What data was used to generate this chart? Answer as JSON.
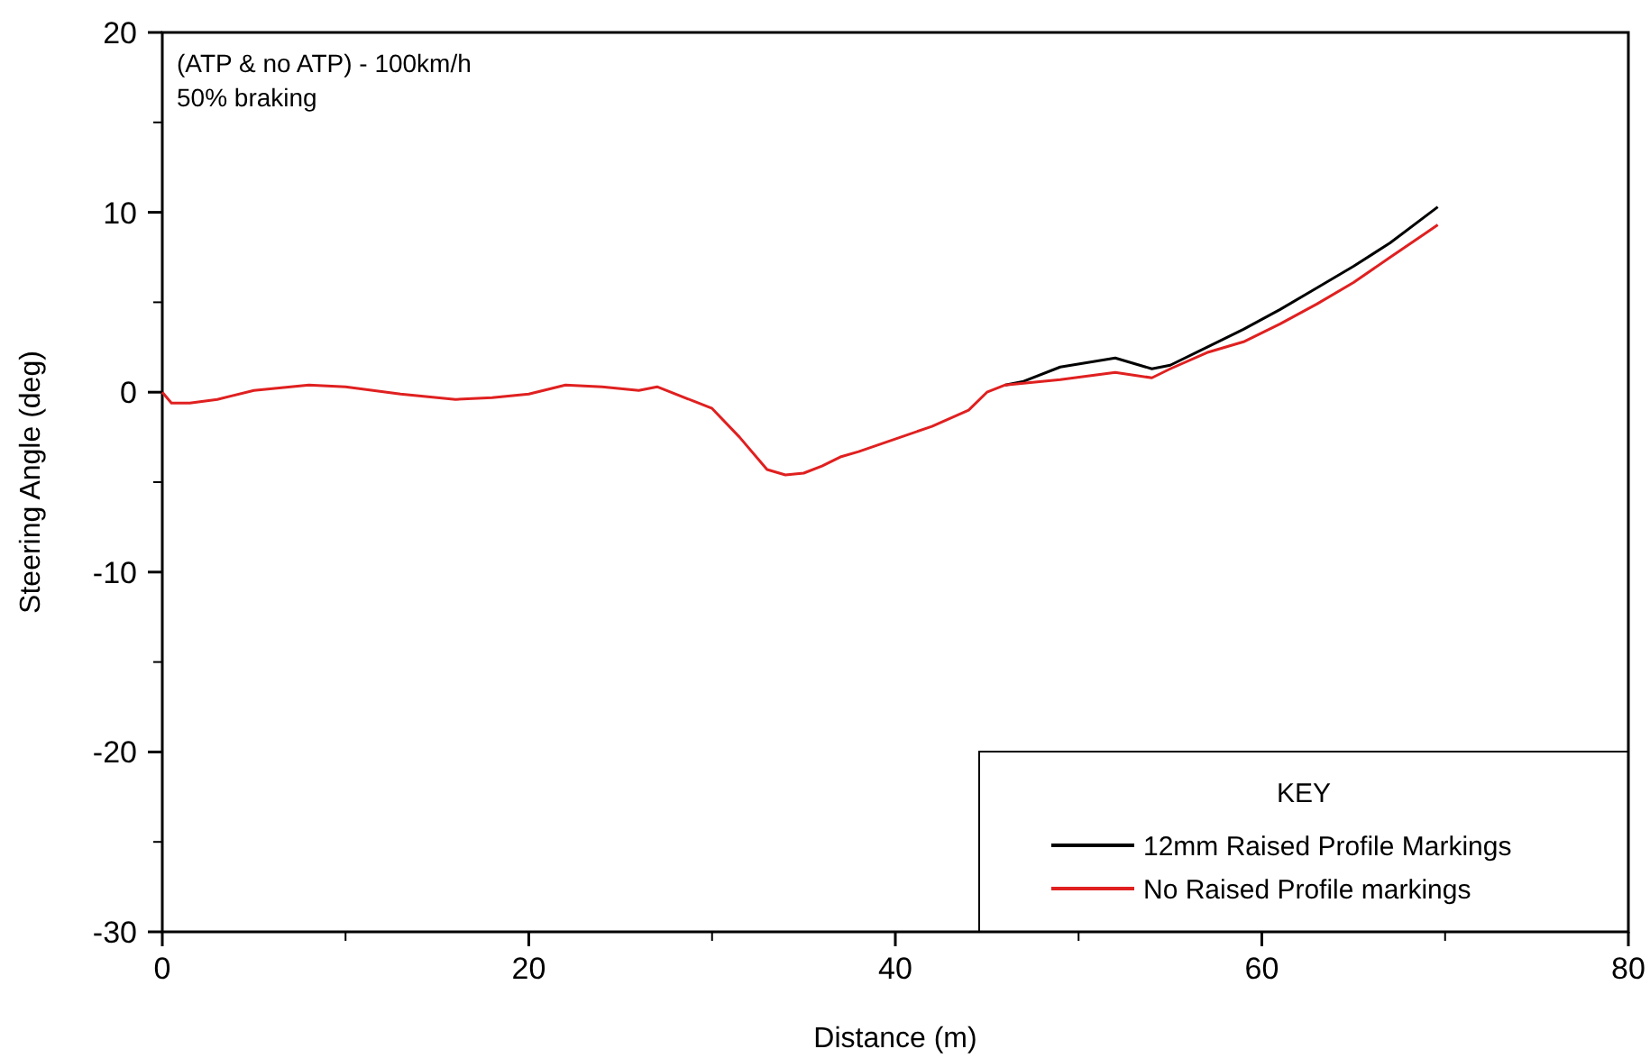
{
  "chart_data": {
    "type": "line",
    "title": "(ATP & no ATP) - 100km/h",
    "subtitle": "50% braking",
    "xlabel": "Distance (m)",
    "ylabel": "Steering Angle (deg)",
    "legend_title": "KEY",
    "legend": "bottom right",
    "grid": false,
    "line_style": "solid",
    "marker": "none",
    "x": [
      0,
      0.5,
      1.5,
      3,
      5,
      8,
      10,
      13,
      16,
      18,
      20,
      22,
      24,
      26,
      27,
      29,
      30,
      31.5,
      33,
      34,
      35,
      36,
      37,
      38,
      40,
      42,
      44,
      45,
      46,
      47,
      49,
      52,
      54,
      55,
      57,
      59,
      61,
      63,
      65,
      67,
      69.6
    ],
    "series": [
      {
        "name": "12mm Raised Profile Markings",
        "color": "#000000",
        "x": [
          46,
          47,
          49,
          52,
          54,
          55,
          57,
          59,
          61,
          63,
          65,
          67,
          69.6
        ],
        "values": [
          0.4,
          0.6,
          1.4,
          1.9,
          1.3,
          1.5,
          2.5,
          3.5,
          4.6,
          5.8,
          7.0,
          8.3,
          10.3
        ]
      },
      {
        "name": "No Raised Profile markings",
        "color": "#e02020",
        "values": [
          0,
          -0.6,
          -0.6,
          -0.4,
          0.1,
          0.4,
          0.3,
          -0.1,
          -0.4,
          -0.3,
          -0.1,
          0.4,
          0.3,
          0.1,
          0.3,
          -0.5,
          -0.9,
          -2.5,
          -4.3,
          -4.6,
          -4.5,
          -4.1,
          -3.6,
          -3.3,
          -2.6,
          -1.9,
          -1.0,
          0.0,
          0.4,
          0.5,
          0.7,
          1.1,
          0.8,
          1.3,
          2.2,
          2.8,
          3.8,
          4.9,
          6.1,
          7.5,
          9.3
        ]
      }
    ],
    "xlim": [
      0,
      80
    ],
    "xticks": [
      0,
      20,
      40,
      60,
      80
    ],
    "ylim": [
      -30,
      20
    ],
    "yticks": [
      -30,
      -20,
      -10,
      0,
      10,
      20
    ]
  }
}
